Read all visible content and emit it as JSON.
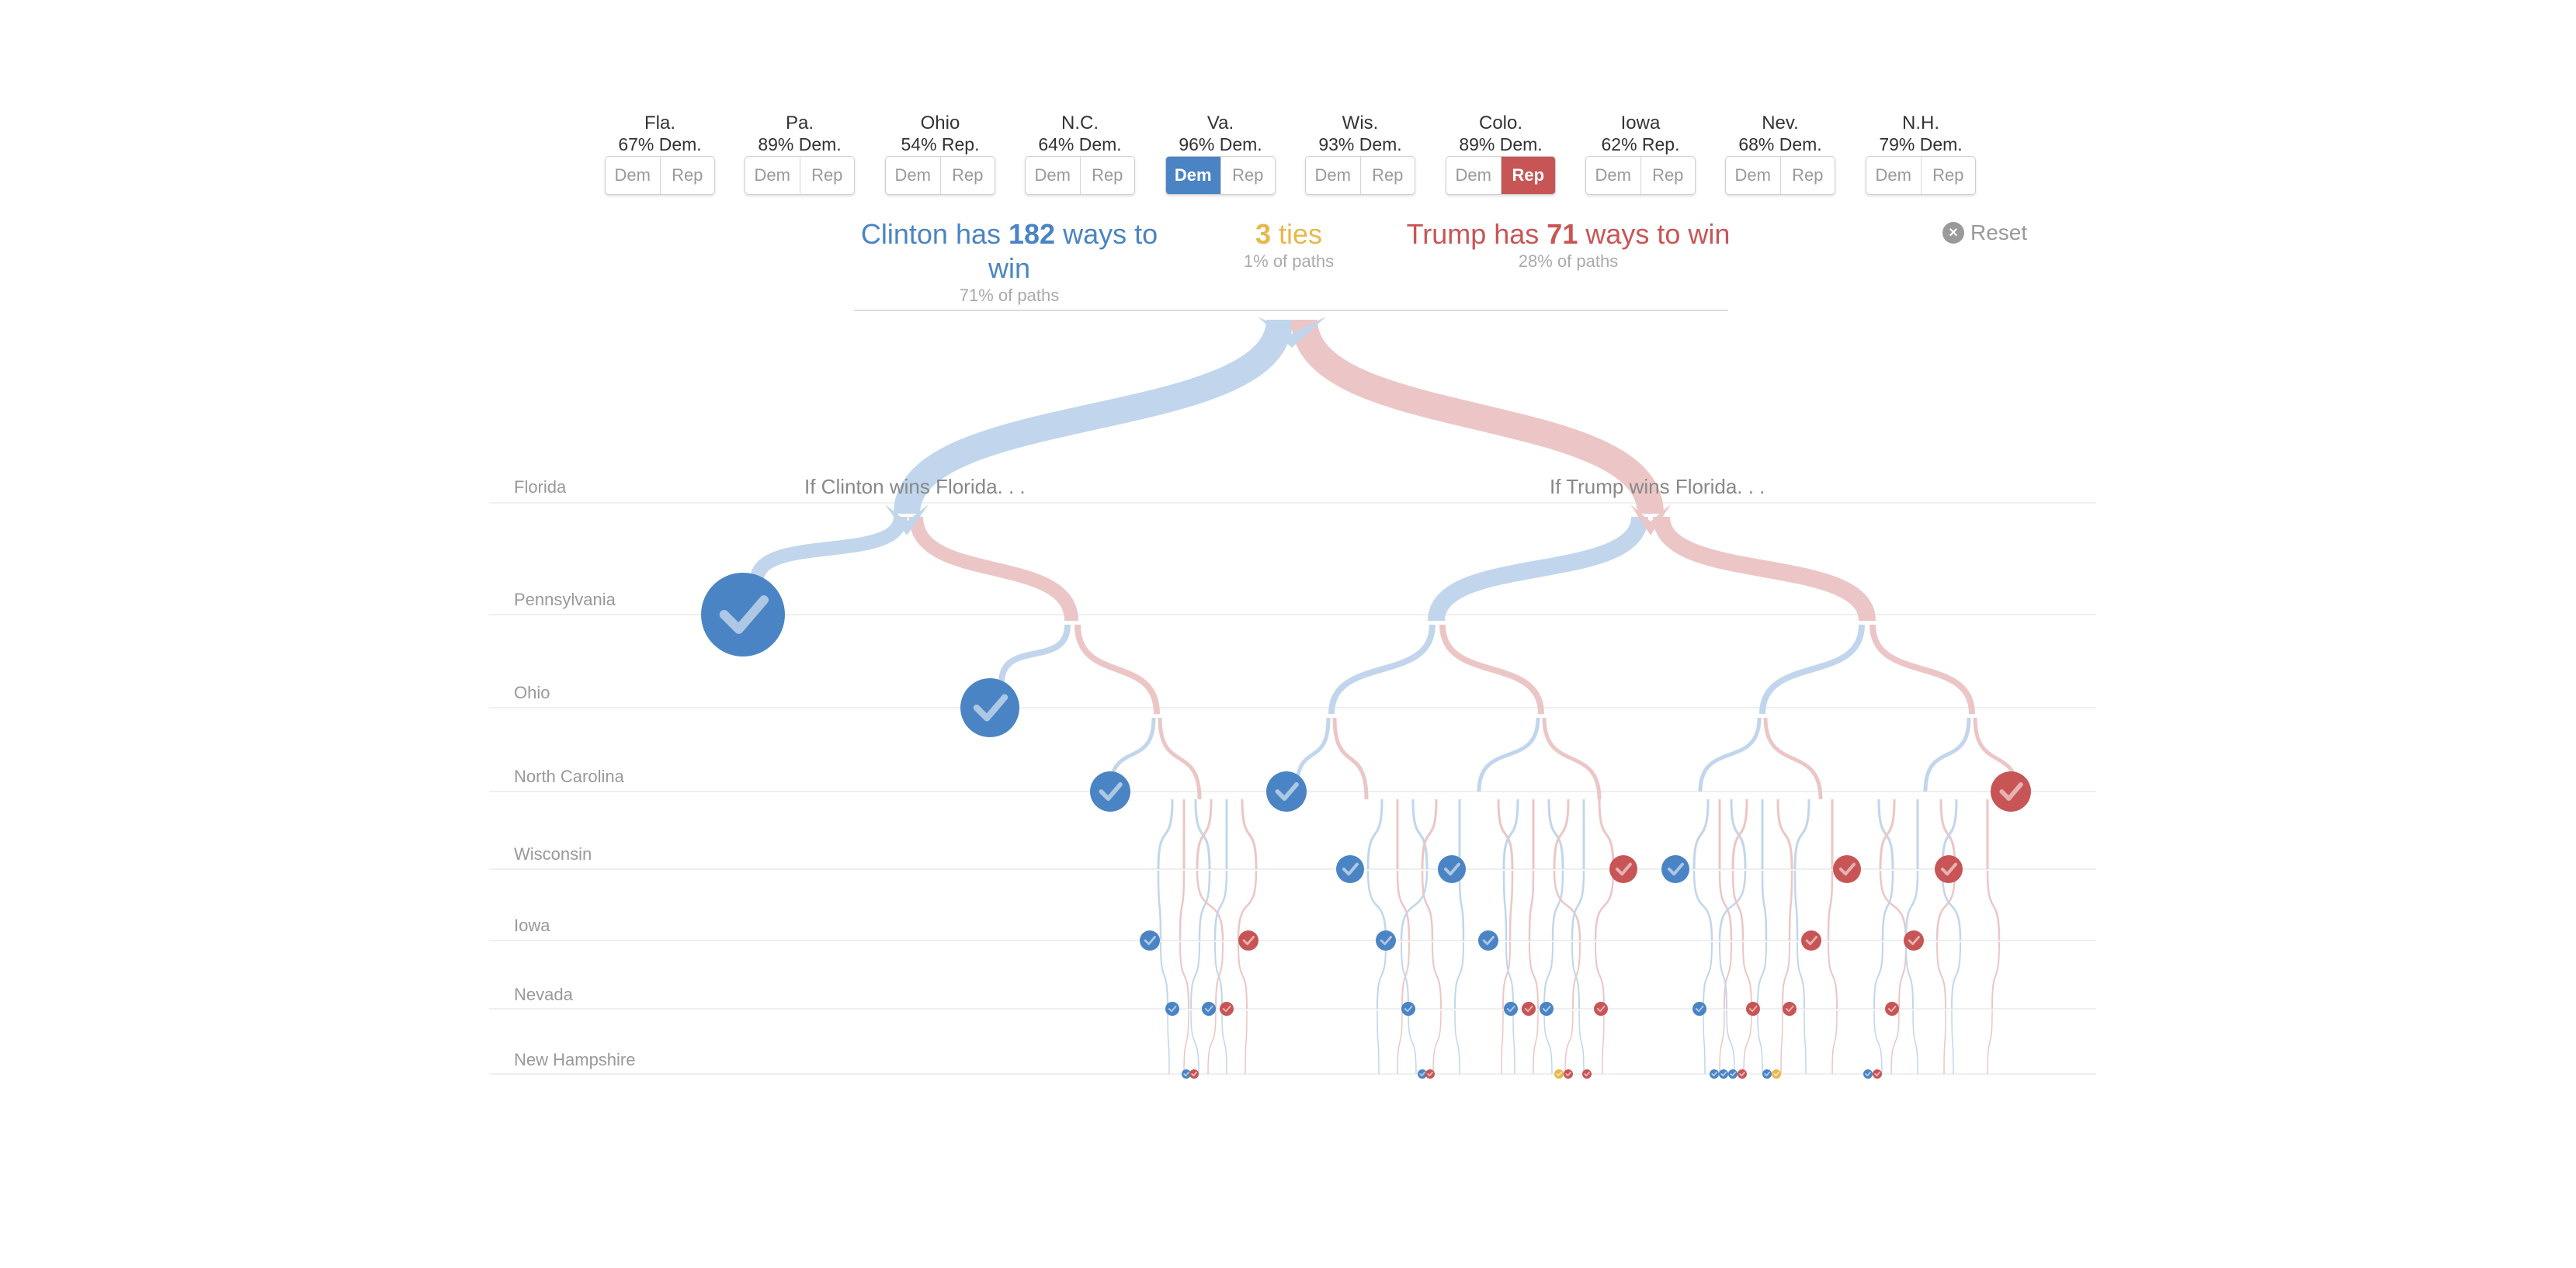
{
  "states": [
    {
      "name": "Fla.",
      "odds": "67% Dem.",
      "dem": "Dem",
      "rep": "Rep",
      "selected": ""
    },
    {
      "name": "Pa.",
      "odds": "89% Dem.",
      "dem": "Dem",
      "rep": "Rep",
      "selected": ""
    },
    {
      "name": "Ohio",
      "odds": "54% Rep.",
      "dem": "Dem",
      "rep": "Rep",
      "selected": ""
    },
    {
      "name": "N.C.",
      "odds": "64% Dem.",
      "dem": "Dem",
      "rep": "Rep",
      "selected": ""
    },
    {
      "name": "Va.",
      "odds": "96% Dem.",
      "dem": "Dem",
      "rep": "Rep",
      "selected": "dem"
    },
    {
      "name": "Wis.",
      "odds": "93% Dem.",
      "dem": "Dem",
      "rep": "Rep",
      "selected": ""
    },
    {
      "name": "Colo.",
      "odds": "89% Dem.",
      "dem": "Dem",
      "rep": "Rep",
      "selected": "rep"
    },
    {
      "name": "Iowa",
      "odds": "62% Rep.",
      "dem": "Dem",
      "rep": "Rep",
      "selected": ""
    },
    {
      "name": "Nev.",
      "odds": "68% Dem.",
      "dem": "Dem",
      "rep": "Rep",
      "selected": ""
    },
    {
      "name": "N.H.",
      "odds": "79% Dem.",
      "dem": "Dem",
      "rep": "Rep",
      "selected": ""
    }
  ],
  "summary": {
    "clinton": {
      "prefix": "Clinton has ",
      "count": "182",
      "suffix": " ways to win",
      "sub": "71% of paths"
    },
    "ties": {
      "count": "3",
      "suffix": " ties",
      "sub": "1% of paths"
    },
    "trump": {
      "prefix": "Trump has ",
      "count": "71",
      "suffix": " ways to win",
      "sub": "28% of paths"
    }
  },
  "reset": {
    "icon": "close-circle-icon",
    "label": "Reset"
  },
  "tree": {
    "rows": [
      "Florida",
      "Pennsylvania",
      "Ohio",
      "North Carolina",
      "Wisconsin",
      "Iowa",
      "Nevada",
      "New Hampshire"
    ],
    "branch_labels": {
      "clinton": "If Clinton wins Florida. . .",
      "trump": "If Trump wins Florida. . ."
    }
  },
  "colors": {
    "dem": "#4a84c4",
    "rep": "#c85556",
    "dem_light": "#c1d6ec",
    "rep_light": "#ecc6c6",
    "tie": "#e7b84a"
  }
}
